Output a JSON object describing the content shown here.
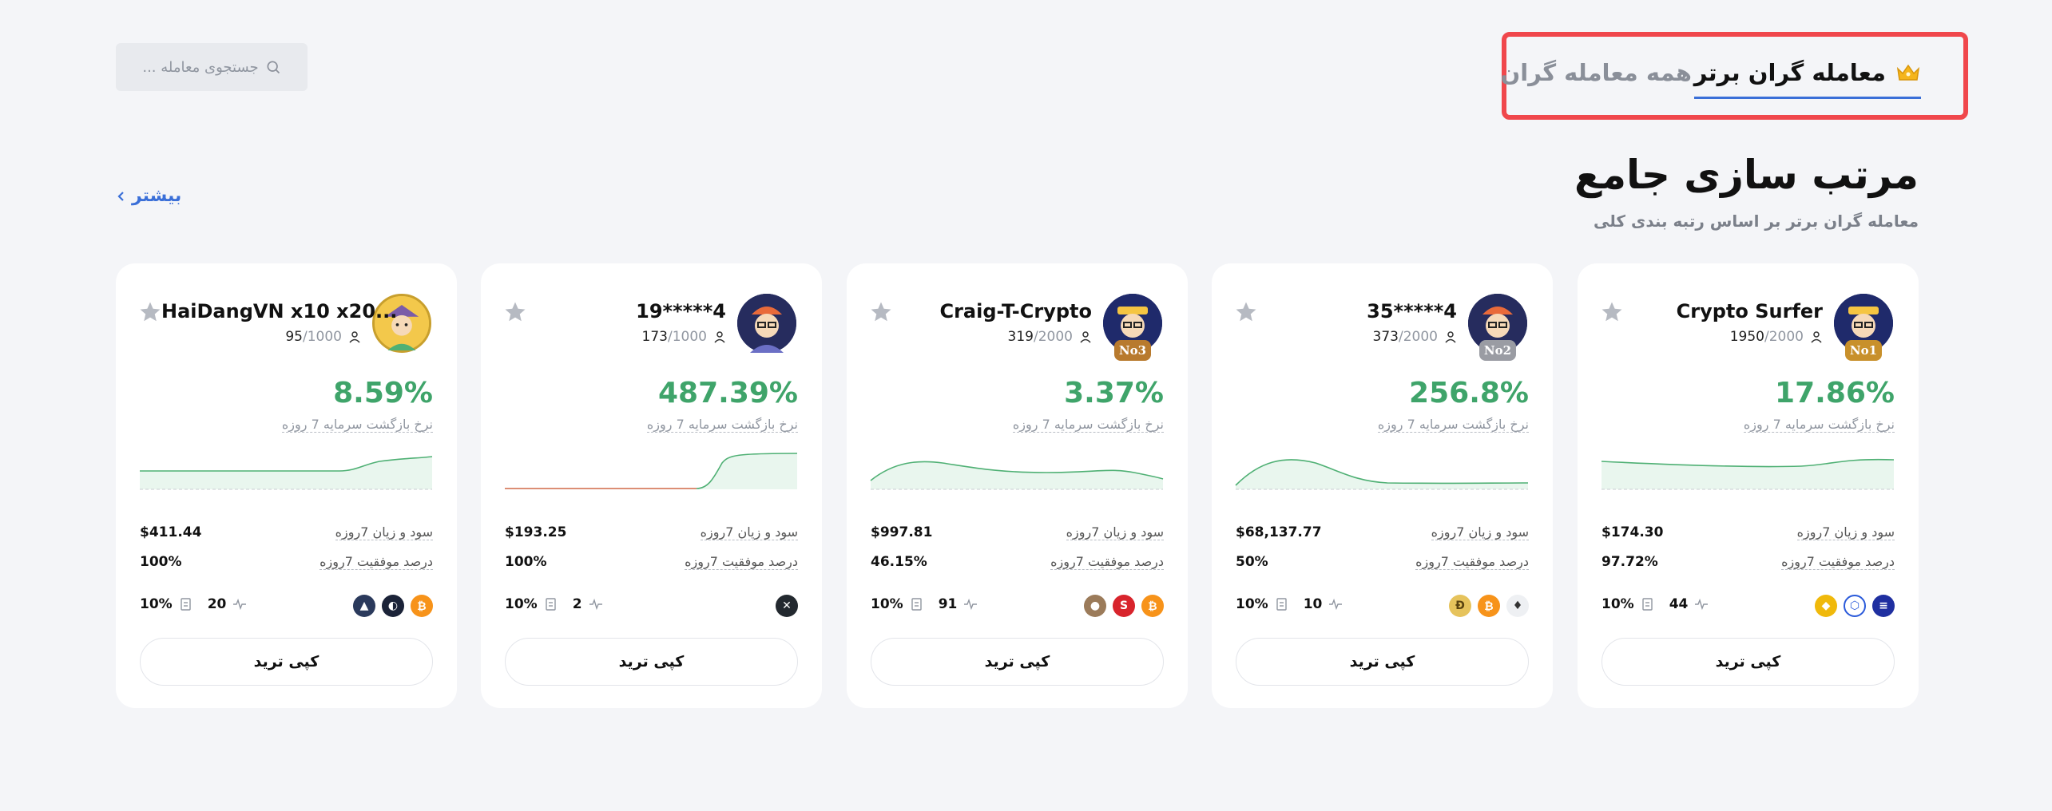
{
  "search": {
    "placeholder": "جستجوی معامله ..."
  },
  "tabs": [
    {
      "label": "معامله گران برتر",
      "active": true
    },
    {
      "label": "همه معامله گران",
      "active": false
    }
  ],
  "section": {
    "title": "مرتب سازی جامع",
    "subtitle": "معامله گران برتر بر اساس رتبه بندی کلی",
    "more_label": "بیشتر"
  },
  "colors": {
    "accent": "#3a6fd8",
    "profit": "#3fa46a",
    "highlight_border": "#f0474c"
  },
  "labels": {
    "roi": "نرخ بازگشت سرمایه 7 روزه",
    "pnl": "سود و زیان 7روزه",
    "win_rate": "درصد موفقیت 7روزه",
    "copy": "کپی ترید"
  },
  "cards": [
    {
      "name": "Crypto Surfer",
      "rank": "No1",
      "followers": "1950",
      "max_followers": "/2000",
      "roi": "17.86%",
      "pnl": "$174.30",
      "win_rate": "97.72%",
      "share": "10%",
      "trades": "44",
      "coins": [
        "solana-coin",
        "chainlink-coin",
        "bnb-coin"
      ]
    },
    {
      "name": "35*****4",
      "rank": "No2",
      "followers": "373",
      "max_followers": "/2000",
      "roi": "256.8%",
      "pnl": "$68,137.77",
      "win_rate": "50%",
      "share": "10%",
      "trades": "10",
      "coins": [
        "ethereum-coin",
        "bitcoin-coin",
        "dogecoin-coin"
      ]
    },
    {
      "name": "Craig-T-Crypto",
      "rank": "No3",
      "followers": "319",
      "max_followers": "/2000",
      "roi": "3.37%",
      "pnl": "$997.81",
      "win_rate": "46.15%",
      "share": "10%",
      "trades": "91",
      "coins": [
        "bitcoin-coin",
        "sui-coin",
        "mog-coin"
      ]
    },
    {
      "name": "19*****4",
      "rank": "",
      "followers": "173",
      "max_followers": "/1000",
      "roi": "487.39%",
      "pnl": "$193.25",
      "win_rate": "100%",
      "share": "10%",
      "trades": "2",
      "coins": [
        "xrp-coin"
      ]
    },
    {
      "name": "HaiDangVN x10 x20...",
      "rank": "",
      "followers": "95",
      "max_followers": "/1000",
      "roi": "8.59%",
      "pnl": "$411.44",
      "win_rate": "100%",
      "share": "10%",
      "trades": "20",
      "coins": [
        "bitcoin-coin",
        "cyber-coin",
        "arbitrum-coin"
      ]
    }
  ]
}
